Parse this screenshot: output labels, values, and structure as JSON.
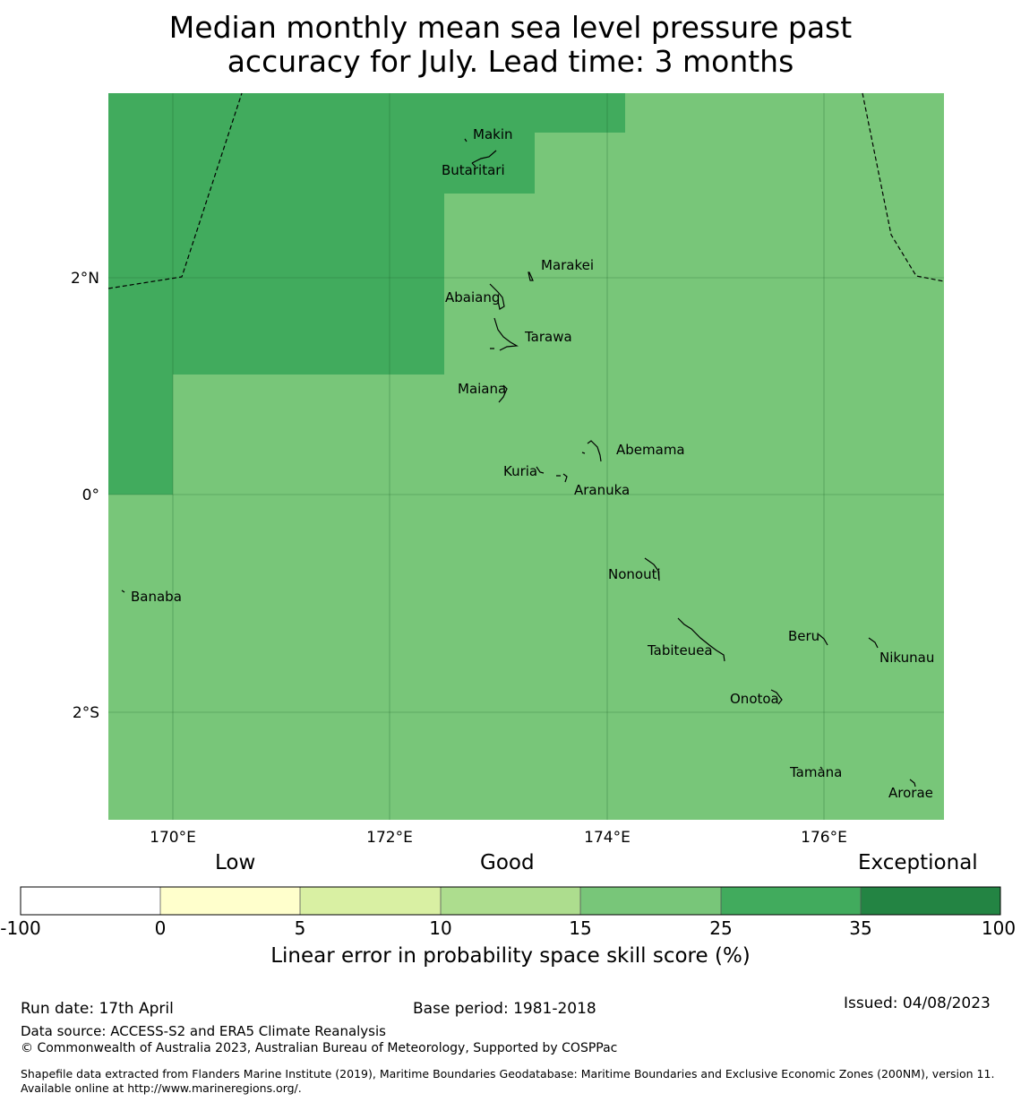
{
  "title_line1": "Median monthly mean sea level pressure past",
  "title_line2": "accuracy for July. Lead time: 3 months",
  "map": {
    "lon_ticks": [
      "170°E",
      "172°E",
      "174°E",
      "176°E"
    ],
    "lat_ticks": [
      "2°N",
      "0°",
      "2°S"
    ],
    "islands": [
      "Makin",
      "Butaritari",
      "Marakei",
      "Abaiang",
      "Tarawa",
      "Maiana",
      "Abemama",
      "Kuria",
      "Aranuka",
      "Banaba",
      "Nonouti",
      "Beru",
      "Tabiteuea",
      "Nikunau",
      "Onotoa",
      "Tamana",
      "Arorae"
    ],
    "colors": {
      "category_25_35": "#41ab5d",
      "category_15_25": "#78c679"
    }
  },
  "colorbar": {
    "categories": [
      "Low",
      "Good",
      "Exceptional"
    ],
    "ticks": [
      "-100",
      "0",
      "5",
      "10",
      "15",
      "25",
      "35",
      "100"
    ],
    "colors": [
      "#ffffff",
      "#ffffcc",
      "#d9f0a3",
      "#addd8e",
      "#78c679",
      "#41ab5d",
      "#238443"
    ],
    "label": "Linear error in probability space skill score (%)"
  },
  "footer": {
    "run_date": "Run date: 17th April",
    "base_period": "Base period: 1981-2018",
    "issued": "Issued: 04/08/2023",
    "data_source": "Data source: ACCESS-S2 and ERA5 Climate Reanalysis",
    "copyright": "© Commonwealth of Australia 2023, Australian Bureau of Meteorology, Supported by COSPPac",
    "shapefile": "Shapefile data extracted from Flanders Marine Institute (2019), Maritime Boundaries Geodatabase: Maritime Boundaries and Exclusive Economic Zones (200NM), version 11. Available online at http://www.marineregions.org/."
  }
}
